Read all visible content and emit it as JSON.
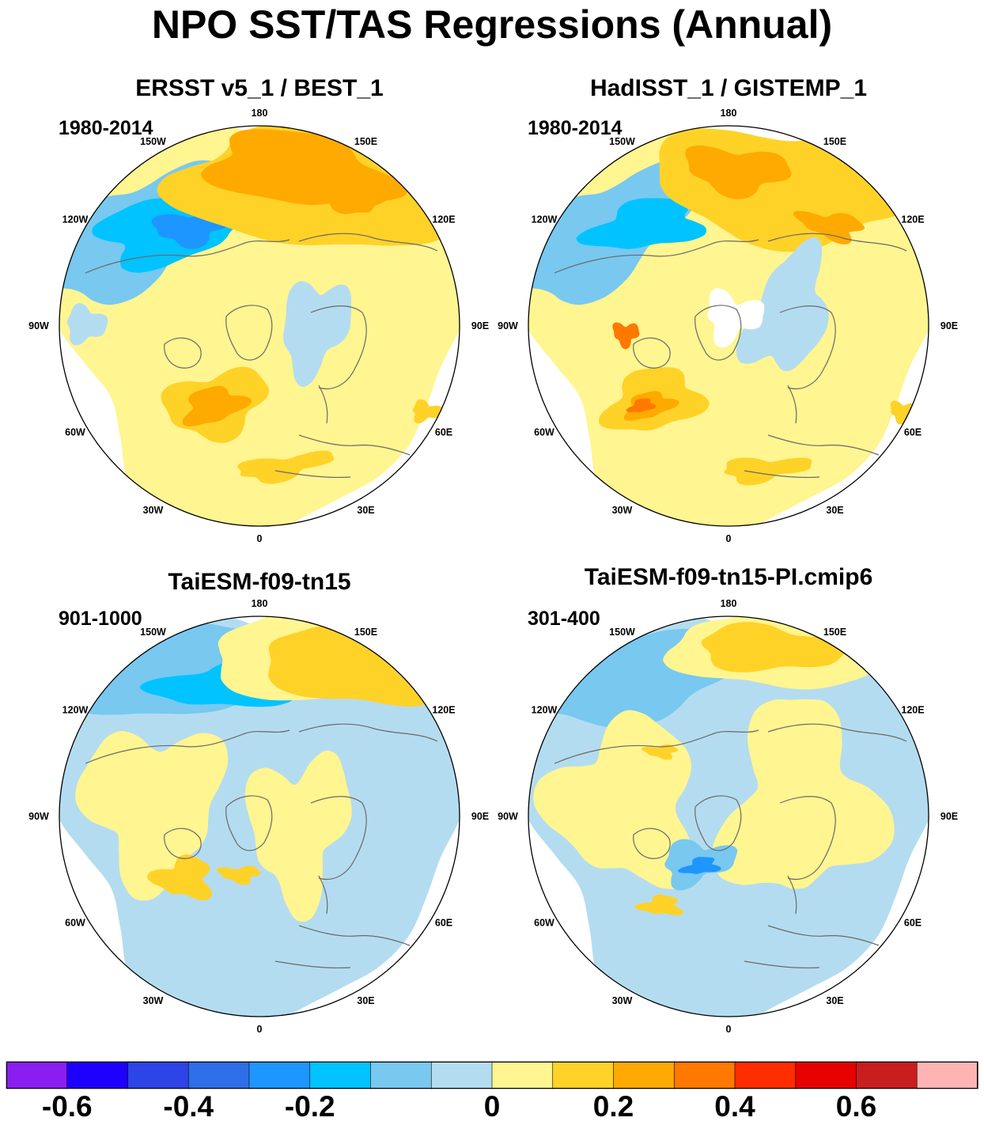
{
  "title": "NPO SST/TAS Regressions (Annual)",
  "panels": [
    {
      "id": "p1",
      "title": "ERSST v5_1 / BEST_1",
      "period": "1980-2014",
      "pattern": "obs1"
    },
    {
      "id": "p2",
      "title": "HadISST_1 / GISTEMP_1",
      "period": "1980-2014",
      "pattern": "obs2"
    },
    {
      "id": "p3",
      "title": "TaiESM-f09-tn15",
      "period": "901-1000",
      "pattern": "mod1"
    },
    {
      "id": "p4",
      "title": "TaiESM-f09-tn15-PI.cmip6",
      "period": "301-400",
      "pattern": "mod2"
    }
  ],
  "longitude_labels": [
    "180",
    "150E",
    "120E",
    "90E",
    "60E",
    "30E",
    "0",
    "30W",
    "60W",
    "90W",
    "120W",
    "150W"
  ],
  "colorbar": {
    "colors": [
      "#8a1ef0",
      "#1e00ff",
      "#2d44e6",
      "#2e6ee6",
      "#1e96ff",
      "#00c3ff",
      "#78c8f0",
      "#b4dcf0",
      "#fff591",
      "#ffd228",
      "#ffaa00",
      "#ff7800",
      "#ff2d00",
      "#e60000",
      "#c81e1e",
      "#ffb4b4"
    ],
    "labels": [
      "-0.6",
      "-0.4",
      "-0.2",
      "0",
      "0.2",
      "0.4",
      "0.6"
    ],
    "label_boundaries": [
      1,
      3,
      5,
      8,
      10,
      12,
      14
    ]
  },
  "chart_data": {
    "type": "polar-stereographic contour maps",
    "variable": "NPO SST/TAS regression",
    "season": "Annual",
    "contour_levels": [
      -0.7,
      -0.6,
      -0.5,
      -0.4,
      -0.3,
      -0.2,
      -0.1,
      0,
      0.1,
      0.2,
      0.3,
      0.4,
      0.5,
      0.6,
      0.7
    ],
    "panels": [
      {
        "title": "ERSST v5_1 / BEST_1",
        "period": "1980-2014"
      },
      {
        "title": "HadISST_1 / GISTEMP_1",
        "period": "1980-2014"
      },
      {
        "title": "TaiESM-f09-tn15",
        "period": "901-1000"
      },
      {
        "title": "TaiESM-f09-tn15-PI.cmip6",
        "period": "301-400"
      }
    ]
  }
}
